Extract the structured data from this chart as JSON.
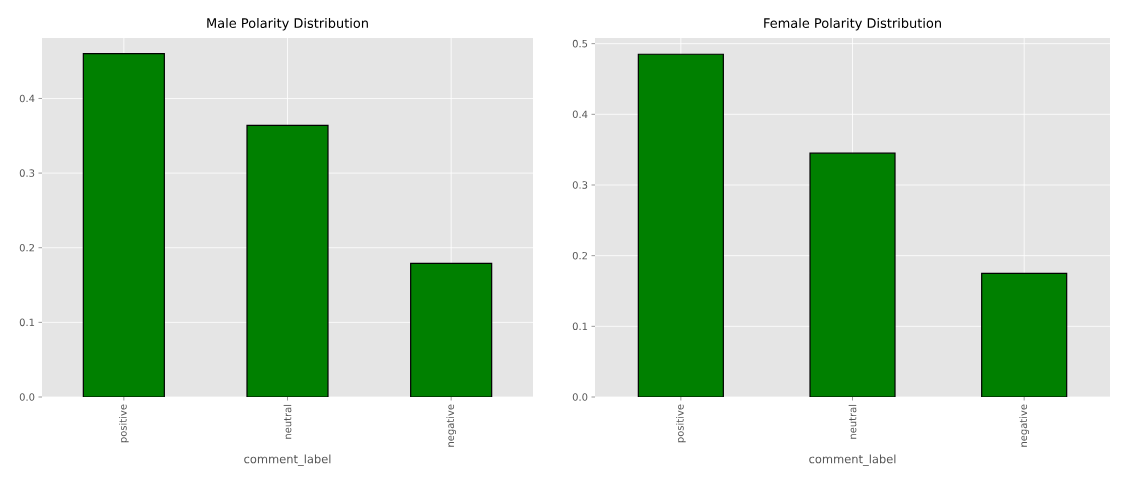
{
  "chart_data": [
    {
      "type": "bar",
      "title": "Male Polarity Distribution",
      "xlabel": "comment_label",
      "categories": [
        "positive",
        "neutral",
        "negative"
      ],
      "values": [
        0.46,
        0.364,
        0.179
      ],
      "color": "#008000",
      "ylim": [
        0,
        0.481
      ],
      "yticks": [
        {
          "value": 0,
          "label": "0.0"
        },
        0.1,
        0.2,
        0.3,
        0.4
      ],
      "grid": true
    },
    {
      "type": "bar",
      "title": "Female Polarity Distribution",
      "xlabel": "comment_label",
      "categories": [
        "positive",
        "neutral",
        "negative"
      ],
      "values": [
        0.485,
        0.345,
        0.175
      ],
      "color": "#008000",
      "ylim": [
        0,
        0.508
      ],
      "yticks": [
        {
          "value": 0,
          "label": "0.0"
        },
        0.1,
        0.2,
        0.3,
        0.4,
        0.5
      ],
      "grid": true
    }
  ]
}
